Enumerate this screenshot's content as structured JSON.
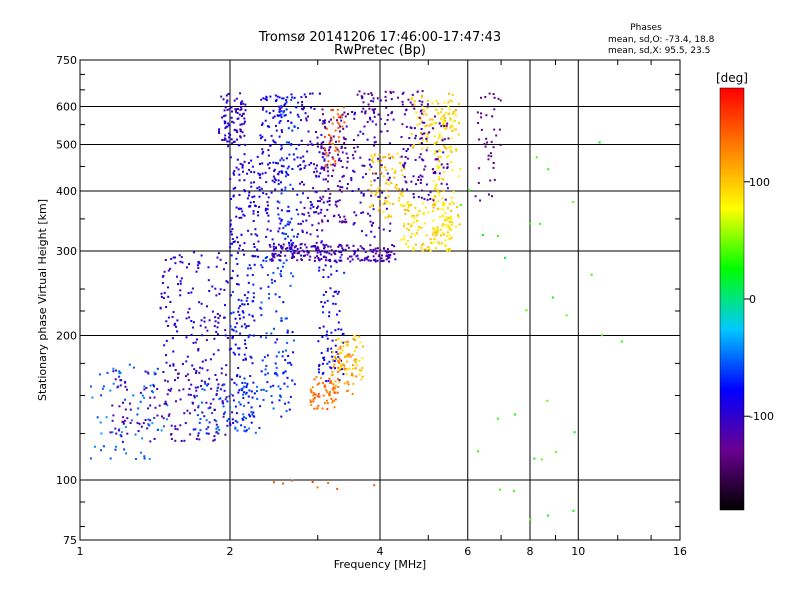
{
  "chart_data": {
    "type": "scatter",
    "title": "Tromsø 20141206 17:46:00-17:47:43",
    "subtitle": "RwPretec (Bp)",
    "xlabel": "Frequency [MHz]",
    "ylabel": "Stationary phase Virtual Height [km]",
    "x_scale": "log",
    "y_scale": "log",
    "xlim": [
      1,
      16
    ],
    "ylim": [
      75,
      750
    ],
    "x_ticks": [
      1,
      2,
      4,
      6,
      8,
      10,
      16
    ],
    "x_tick_labels": [
      "1",
      "2",
      "4",
      "6",
      "8",
      "10",
      "16"
    ],
    "y_ticks": [
      75,
      100,
      200,
      300,
      400,
      500,
      600,
      750
    ],
    "y_tick_labels": [
      "75",
      "100",
      "200",
      "300",
      "400",
      "500",
      "600",
      "750"
    ],
    "grid": true,
    "legend": {
      "title": "Phases",
      "lines": [
        "mean, sd,O: -73.4, 18.8",
        "mean, sd,X:  95.5, 23.5"
      ],
      "placement": "top-right"
    },
    "colorbar": {
      "label": "[deg]",
      "range": [
        -180,
        180
      ],
      "ticks": [
        100,
        0,
        -100
      ],
      "tick_labels": [
        "100",
        "0",
        "-100"
      ],
      "colors": [
        "#000000",
        "#6a0090",
        "#0000ff",
        "#00c8ff",
        "#00ff00",
        "#ffff00",
        "#ff8000",
        "#ff0000"
      ]
    },
    "series": [
      {
        "f": [
          1.9,
          2.15
        ],
        "h": [
          495,
          640
        ],
        "phase": -100,
        "n": 90
      },
      {
        "f": [
          2.0,
          2.3
        ],
        "h": [
          290,
          480
        ],
        "phase": -90,
        "n": 110
      },
      {
        "f": [
          2.0,
          2.25
        ],
        "h": [
          130,
          290
        ],
        "phase": -80,
        "n": 120
      },
      {
        "f": [
          1.45,
          2.0
        ],
        "h": [
          170,
          300
        ],
        "phase": -95,
        "n": 140
      },
      {
        "f": [
          1.05,
          1.5
        ],
        "h": [
          110,
          175
        ],
        "phase": -50,
        "n": 70
      },
      {
        "f": [
          1.15,
          2.0
        ],
        "h": [
          120,
          170
        ],
        "phase": -108,
        "n": 160
      },
      {
        "f": [
          1.7,
          2.3
        ],
        "h": [
          125,
          160
        ],
        "phase": -60,
        "n": 80
      },
      {
        "f": [
          2.3,
          2.55
        ],
        "h": [
          300,
          640
        ],
        "phase": -90,
        "n": 110
      },
      {
        "f": [
          2.5,
          2.75
        ],
        "h": [
          300,
          640
        ],
        "phase": -70,
        "n": 100
      },
      {
        "f": [
          2.3,
          2.7
        ],
        "h": [
          135,
          300
        ],
        "phase": -65,
        "n": 110
      },
      {
        "f": [
          2.75,
          3.1
        ],
        "h": [
          300,
          640
        ],
        "phase": -100,
        "n": 120
      },
      {
        "f": [
          3.0,
          3.4
        ],
        "h": [
          160,
          300
        ],
        "phase": -80,
        "n": 90
      },
      {
        "f": [
          3.05,
          3.45
        ],
        "h": [
          340,
          600
        ],
        "phase": -118,
        "n": 110
      },
      {
        "f": [
          3.1,
          3.4
        ],
        "h": [
          450,
          600
        ],
        "phase": 145,
        "n": 40
      },
      {
        "f": [
          2.4,
          4.3
        ],
        "h": [
          285,
          310
        ],
        "phase": -112,
        "n": 200
      },
      {
        "f": [
          2.9,
          3.3
        ],
        "h": [
          140,
          165
        ],
        "phase": 135,
        "n": 60
      },
      {
        "f": [
          3.2,
          3.6
        ],
        "h": [
          150,
          200
        ],
        "phase": 120,
        "n": 60
      },
      {
        "f": [
          3.3,
          3.7
        ],
        "h": [
          160,
          200
        ],
        "phase": 95,
        "n": 40
      },
      {
        "f": [
          3.5,
          4.2
        ],
        "h": [
          320,
          600
        ],
        "phase": -100,
        "n": 90
      },
      {
        "f": [
          3.8,
          4.5
        ],
        "h": [
          350,
          480
        ],
        "phase": 100,
        "n": 80
      },
      {
        "f": [
          4.4,
          5.6
        ],
        "h": [
          300,
          380
        ],
        "phase": 93,
        "n": 120
      },
      {
        "f": [
          4.6,
          5.7
        ],
        "h": [
          480,
          640
        ],
        "phase": 98,
        "n": 80
      },
      {
        "f": [
          5.1,
          5.8
        ],
        "h": [
          320,
          620
        ],
        "phase": 90,
        "n": 120
      },
      {
        "f": [
          4.4,
          5.5
        ],
        "h": [
          380,
          560
        ],
        "phase": -110,
        "n": 90
      },
      {
        "f": [
          3.6,
          5.2
        ],
        "h": [
          550,
          650
        ],
        "phase": -120,
        "n": 70
      },
      {
        "f": [
          6.2,
          7.0
        ],
        "h": [
          380,
          640
        ],
        "phase": -130,
        "n": 40
      },
      {
        "f": [
          5.8,
          12.5
        ],
        "h": [
          80,
          520
        ],
        "phase": 30,
        "n": 30
      },
      {
        "f": [
          2.3,
          4.2
        ],
        "h": [
          95,
          100
        ],
        "phase": 140,
        "n": 8
      }
    ]
  }
}
